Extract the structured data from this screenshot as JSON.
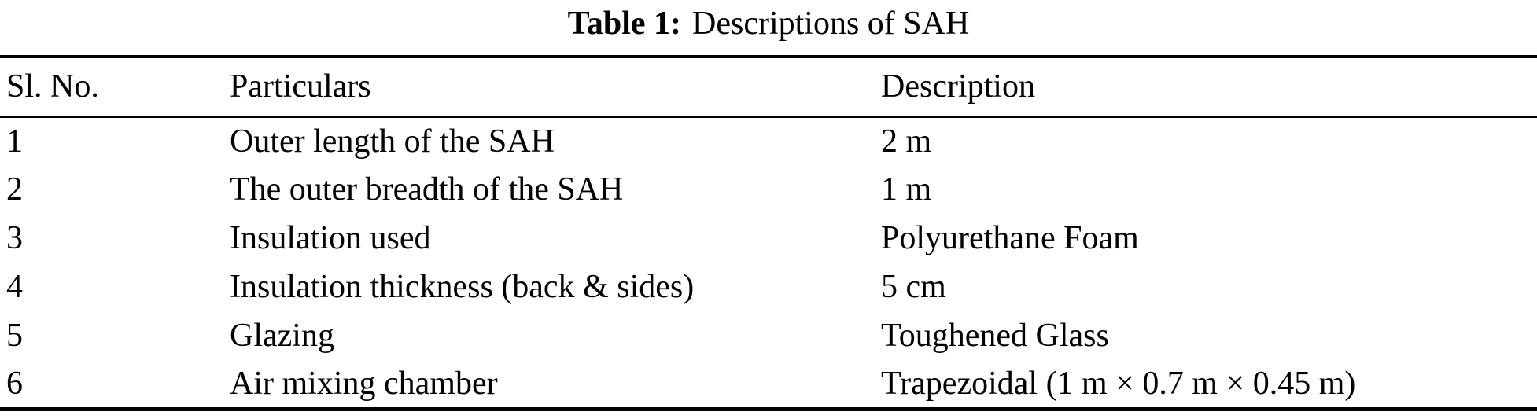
{
  "caption": {
    "bold_label": "Table 1:",
    "text": "Descriptions of SAH"
  },
  "table": {
    "columns": [
      "Sl. No.",
      "Particulars",
      "Description"
    ],
    "rows": [
      {
        "sl_no": "1",
        "particulars": "Outer length of the SAH",
        "description": "2 m"
      },
      {
        "sl_no": "2",
        "particulars": "The outer breadth of the SAH",
        "description": "1 m"
      },
      {
        "sl_no": "3",
        "particulars": "Insulation used",
        "description": "Polyurethane Foam"
      },
      {
        "sl_no": "4",
        "particulars": "Insulation thickness (back & sides)",
        "description": "5 cm"
      },
      {
        "sl_no": "5",
        "particulars": "Glazing",
        "description": "Toughened Glass"
      },
      {
        "sl_no": "6",
        "particulars": "Air mixing chamber",
        "description": "Trapezoidal (1 m × 0.7 m × 0.45 m)"
      }
    ]
  },
  "colors": {
    "text": "#000000",
    "background": "#ffffff",
    "rule": "#000000"
  }
}
